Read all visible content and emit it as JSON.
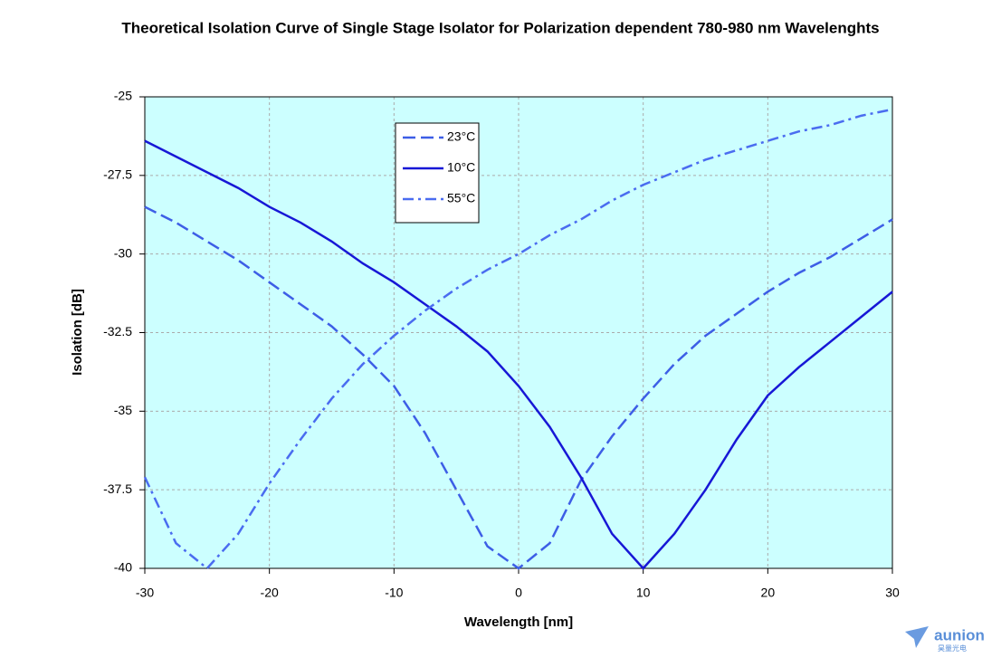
{
  "chart_data": {
    "type": "line",
    "title": "Theoretical Isolation Curve of Single Stage Isolator for Polarization dependent 780-980 nm Wavelenghts",
    "x_label": "Wavelength [nm]",
    "y_label": "Isolation [dB]",
    "x": [
      -30,
      -27.5,
      -25,
      -22.5,
      -20,
      -17.5,
      -15,
      -12.5,
      -10,
      -7.5,
      -5,
      -2.5,
      0,
      2.5,
      5,
      7.5,
      10,
      12.5,
      15,
      17.5,
      20,
      22.5,
      25,
      27.5,
      30
    ],
    "series": [
      {
        "name": "23°C",
        "color": "#3d5ee6",
        "dash": "dashed",
        "values": [
          -28.5,
          -29.0,
          -29.6,
          -30.2,
          -30.9,
          -31.6,
          -32.3,
          -33.2,
          -34.2,
          -35.7,
          -37.5,
          -39.3,
          -40,
          -39.2,
          -37.2,
          -35.8,
          -34.6,
          -33.5,
          -32.6,
          -31.9,
          -31.2,
          -30.6,
          -30.1,
          -29.5,
          -28.9
        ]
      },
      {
        "name": "10°C",
        "color": "#1717d6",
        "dash": "solid",
        "values": [
          -26.4,
          -26.9,
          -27.4,
          -27.9,
          -28.5,
          -29.0,
          -29.6,
          -30.3,
          -30.9,
          -31.6,
          -32.3,
          -33.1,
          -34.2,
          -35.5,
          -37.1,
          -38.9,
          -40,
          -38.9,
          -37.5,
          -35.9,
          -34.5,
          -33.6,
          -32.8,
          -32.0,
          -31.2
        ]
      },
      {
        "name": "55°C",
        "color": "#4a6cf0",
        "dash": "dashdot",
        "values": [
          -37.1,
          -39.2,
          -40,
          -38.9,
          -37.3,
          -35.9,
          -34.6,
          -33.5,
          -32.6,
          -31.8,
          -31.1,
          -30.5,
          -30.0,
          -29.4,
          -28.9,
          -28.3,
          -27.8,
          -27.4,
          -27.0,
          -26.7,
          -26.4,
          -26.1,
          -25.9,
          -25.6,
          -25.4
        ]
      }
    ],
    "xlim": [
      -30,
      30
    ],
    "xticks": [
      -30,
      -20,
      -10,
      0,
      10,
      20,
      30
    ],
    "ylim": [
      -40,
      -25
    ],
    "yticks": [
      -25,
      -27.5,
      -30,
      -32.5,
      -35,
      -37.5,
      -40
    ],
    "grid": true,
    "background": "#ccffff",
    "watermark": "aunion",
    "watermark_sub": "昊量光电"
  }
}
